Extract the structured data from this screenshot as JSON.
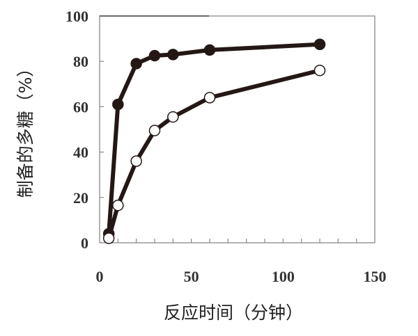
{
  "chart_data": {
    "type": "line",
    "title": "",
    "xlabel": "反应时间（分钟）",
    "ylabel": "制备的多糖（%）",
    "xlim": [
      0,
      150
    ],
    "ylim": [
      0,
      100
    ],
    "xticks": [
      "0",
      "50",
      "100",
      "150"
    ],
    "yticks": [
      "0",
      "20",
      "40",
      "60",
      "80",
      "100"
    ],
    "minor_xtick_step": 10,
    "grid": false,
    "legend": "none",
    "series": [
      {
        "marker": "filled-circle",
        "color": "#231815",
        "x": [
          5,
          10,
          20,
          30,
          40,
          60,
          120
        ],
        "y": [
          4,
          61,
          79,
          82.5,
          83,
          85,
          87.5
        ]
      },
      {
        "marker": "open-circle",
        "color": "#231815",
        "x": [
          5,
          10,
          20,
          30,
          40,
          60,
          120
        ],
        "y": [
          2,
          16.5,
          36,
          49.5,
          55.5,
          64,
          76
        ]
      }
    ]
  }
}
